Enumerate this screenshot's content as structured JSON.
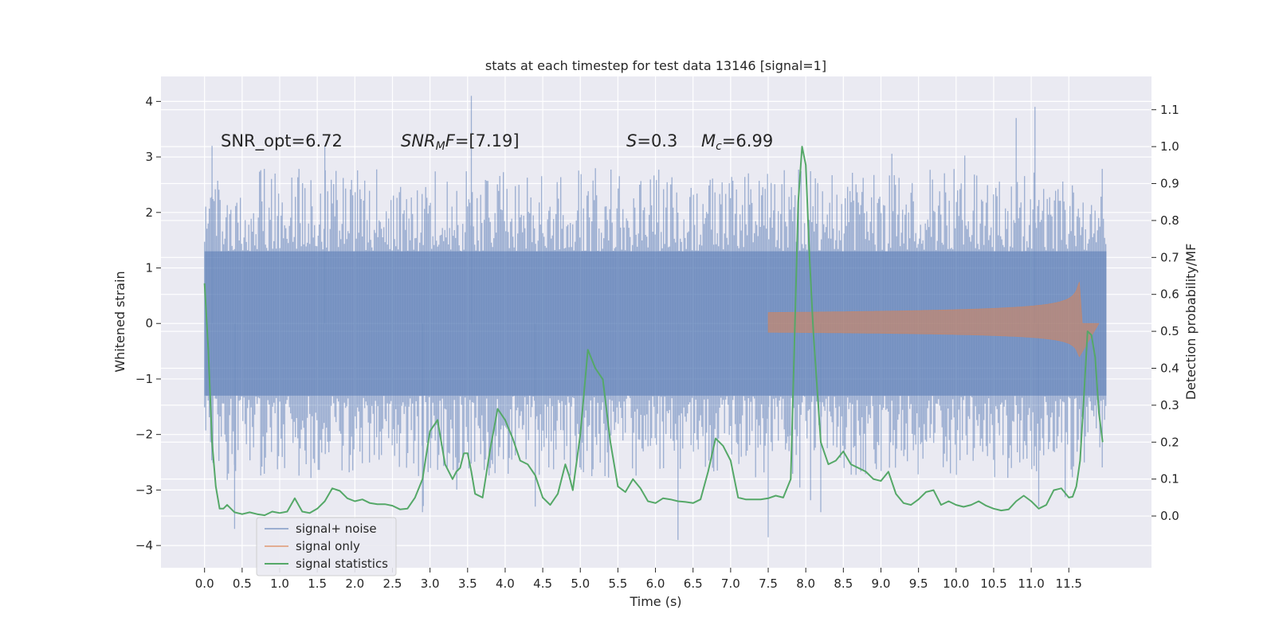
{
  "chart_data": {
    "type": "line",
    "title": "stats at each timestep for test data 13146 [signal=1]",
    "xlabel": "Time (s)",
    "ylabel": "Whitened strain",
    "ylabel_right": "Detection probability/MF",
    "xlim": [
      -0.58,
      12.6
    ],
    "ylim": [
      -4.4,
      4.45
    ],
    "ylim_right": [
      -0.14,
      1.19
    ],
    "x_ticks": [
      "0.0",
      "0.5",
      "1.0",
      "1.5",
      "2.0",
      "2.5",
      "3.0",
      "3.5",
      "4.0",
      "4.5",
      "5.0",
      "5.5",
      "6.0",
      "6.5",
      "7.0",
      "7.5",
      "8.0",
      "8.5",
      "9.0",
      "9.5",
      "10.0",
      "10.5",
      "11.0",
      "11.5"
    ],
    "y_ticks": [
      "4",
      "3",
      "2",
      "1",
      "0",
      "−1",
      "−2",
      "−3",
      "−4"
    ],
    "y_ticks_right": [
      "1.1",
      "1.0",
      "0.9",
      "0.8",
      "0.7",
      "0.6",
      "0.5",
      "0.4",
      "0.3",
      "0.2",
      "0.1",
      "0.0"
    ],
    "grid": true,
    "legend_position": "lower-left",
    "annotations": {
      "snr_opt": "SNR_opt=6.72",
      "snr_mf_label": "SNR",
      "snr_mf_sub": "M",
      "snr_mf_after": "F",
      "snr_mf_value": "=[7.19]",
      "s_label": "S",
      "s_value": "=0.3",
      "mc_label": "M",
      "mc_sub": "c",
      "mc_value": "=6.99"
    },
    "series": [
      {
        "name": "signal+ noise",
        "color": "#4c72b0",
        "kind": "noisy-strain",
        "x_range": [
          0.0,
          12.0
        ],
        "envelope": {
          "core_upper": 1.3,
          "core_lower": -1.3,
          "typical_peak": 2.4,
          "max": 4.1,
          "min": -3.9
        },
        "spikes": [
          {
            "x": 0.1,
            "y": 3.2
          },
          {
            "x": 0.4,
            "y": -3.7
          },
          {
            "x": 1.6,
            "y": 3.2
          },
          {
            "x": 2.9,
            "y": -3.4
          },
          {
            "x": 3.55,
            "y": 4.1
          },
          {
            "x": 4.4,
            "y": -3.3
          },
          {
            "x": 6.3,
            "y": -3.9
          },
          {
            "x": 7.5,
            "y": -3.85
          },
          {
            "x": 8.2,
            "y": -3.4
          },
          {
            "x": 10.8,
            "y": 3.7
          },
          {
            "x": 11.05,
            "y": 3.9
          },
          {
            "x": 11.1,
            "y": -3.3
          }
        ]
      },
      {
        "name": "signal only",
        "color": "#dd8452",
        "kind": "chirp",
        "x_range": [
          7.5,
          11.9
        ],
        "peak_time": 11.65,
        "peak_upper": 0.75,
        "peak_lower": -0.6
      },
      {
        "name": "signal statistics",
        "color": "#55a868",
        "axis": "right",
        "x": [
          0.0,
          0.05,
          0.1,
          0.15,
          0.2,
          0.25,
          0.3,
          0.4,
          0.5,
          0.6,
          0.7,
          0.8,
          0.9,
          1.0,
          1.1,
          1.2,
          1.3,
          1.4,
          1.5,
          1.6,
          1.7,
          1.8,
          1.9,
          2.0,
          2.1,
          2.2,
          2.3,
          2.4,
          2.5,
          2.6,
          2.7,
          2.8,
          2.9,
          3.0,
          3.1,
          3.15,
          3.2,
          3.3,
          3.35,
          3.4,
          3.45,
          3.5,
          3.55,
          3.6,
          3.7,
          3.8,
          3.9,
          4.0,
          4.1,
          4.2,
          4.3,
          4.4,
          4.5,
          4.6,
          4.7,
          4.8,
          4.85,
          4.9,
          5.0,
          5.1,
          5.2,
          5.3,
          5.4,
          5.5,
          5.6,
          5.7,
          5.8,
          5.9,
          6.0,
          6.1,
          6.2,
          6.3,
          6.4,
          6.5,
          6.6,
          6.7,
          6.8,
          6.9,
          7.0,
          7.1,
          7.2,
          7.3,
          7.4,
          7.5,
          7.6,
          7.7,
          7.8,
          7.9,
          7.95,
          8.0,
          8.05,
          8.1,
          8.2,
          8.3,
          8.4,
          8.5,
          8.6,
          8.7,
          8.8,
          8.9,
          9.0,
          9.1,
          9.2,
          9.3,
          9.4,
          9.5,
          9.6,
          9.7,
          9.8,
          9.9,
          10.0,
          10.1,
          10.2,
          10.3,
          10.4,
          10.5,
          10.6,
          10.7,
          10.8,
          10.9,
          11.0,
          11.1,
          11.2,
          11.3,
          11.4,
          11.5,
          11.55,
          11.6,
          11.65,
          11.7,
          11.75,
          11.8,
          11.85,
          11.9,
          11.95
        ],
        "values": [
          0.63,
          0.45,
          0.2,
          0.08,
          0.02,
          0.02,
          0.03,
          0.01,
          0.005,
          0.01,
          0.005,
          0.002,
          0.012,
          0.008,
          0.012,
          0.048,
          0.012,
          0.008,
          0.02,
          0.04,
          0.075,
          0.068,
          0.048,
          0.04,
          0.045,
          0.035,
          0.032,
          0.032,
          0.028,
          0.018,
          0.02,
          0.05,
          0.1,
          0.23,
          0.26,
          0.2,
          0.14,
          0.1,
          0.12,
          0.13,
          0.17,
          0.17,
          0.12,
          0.06,
          0.05,
          0.18,
          0.29,
          0.26,
          0.21,
          0.15,
          0.14,
          0.11,
          0.05,
          0.03,
          0.06,
          0.14,
          0.11,
          0.07,
          0.22,
          0.45,
          0.4,
          0.37,
          0.2,
          0.08,
          0.065,
          0.1,
          0.075,
          0.04,
          0.035,
          0.048,
          0.045,
          0.04,
          0.038,
          0.035,
          0.045,
          0.12,
          0.21,
          0.19,
          0.15,
          0.05,
          0.045,
          0.045,
          0.045,
          0.048,
          0.055,
          0.05,
          0.1,
          0.85,
          1.0,
          0.95,
          0.7,
          0.5,
          0.2,
          0.14,
          0.15,
          0.175,
          0.14,
          0.13,
          0.12,
          0.1,
          0.095,
          0.12,
          0.06,
          0.035,
          0.03,
          0.045,
          0.065,
          0.07,
          0.03,
          0.04,
          0.03,
          0.025,
          0.03,
          0.04,
          0.028,
          0.02,
          0.015,
          0.018,
          0.04,
          0.055,
          0.04,
          0.02,
          0.03,
          0.07,
          0.075,
          0.05,
          0.052,
          0.08,
          0.15,
          0.32,
          0.5,
          0.49,
          0.43,
          0.28,
          0.2
        ]
      }
    ]
  }
}
